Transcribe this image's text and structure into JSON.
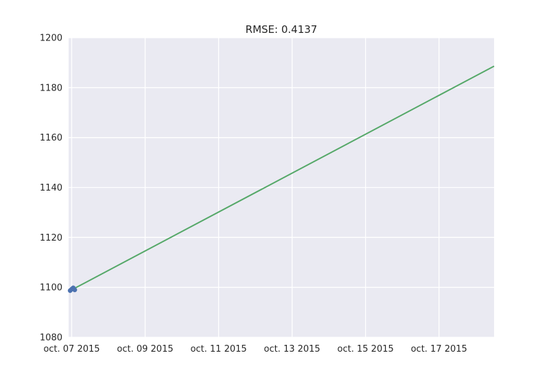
{
  "chart_data": {
    "type": "line",
    "title": "RMSE: 0.4137",
    "xlabel": "",
    "ylabel": "",
    "x_axis_type": "date",
    "xlim": [
      "2015-10-06T22:00:00",
      "2015-10-18T12:00:00"
    ],
    "ylim": [
      1080,
      1200
    ],
    "x_ticks": [
      "2015-10-07",
      "2015-10-09",
      "2015-10-11",
      "2015-10-13",
      "2015-10-15",
      "2015-10-17"
    ],
    "x_tick_labels": [
      "oct. 07 2015",
      "oct. 09 2015",
      "oct. 11 2015",
      "oct. 13 2015",
      "oct. 15 2015",
      "oct. 17 2015"
    ],
    "y_ticks": [
      1080,
      1100,
      1120,
      1140,
      1160,
      1180,
      1200
    ],
    "y_tick_labels": [
      "1080",
      "1100",
      "1120",
      "1140",
      "1160",
      "1180",
      "1200"
    ],
    "grid": true,
    "style": "seaborn-darkgrid",
    "series": [
      {
        "kind": "line",
        "color": "#55a868",
        "x": [
          "2015-10-07T00:00:00",
          "2015-10-18T12:00:00"
        ],
        "y": [
          1099.0,
          1188.6
        ]
      },
      {
        "kind": "scatter",
        "color": "#4c72b0",
        "x": [
          "2015-10-06T23:00:00",
          "2015-10-07T00:00:00",
          "2015-10-07T01:00:00",
          "2015-10-07T02:00:00"
        ],
        "y": [
          1098.7,
          1099.3,
          1099.8,
          1099.0
        ]
      }
    ]
  }
}
